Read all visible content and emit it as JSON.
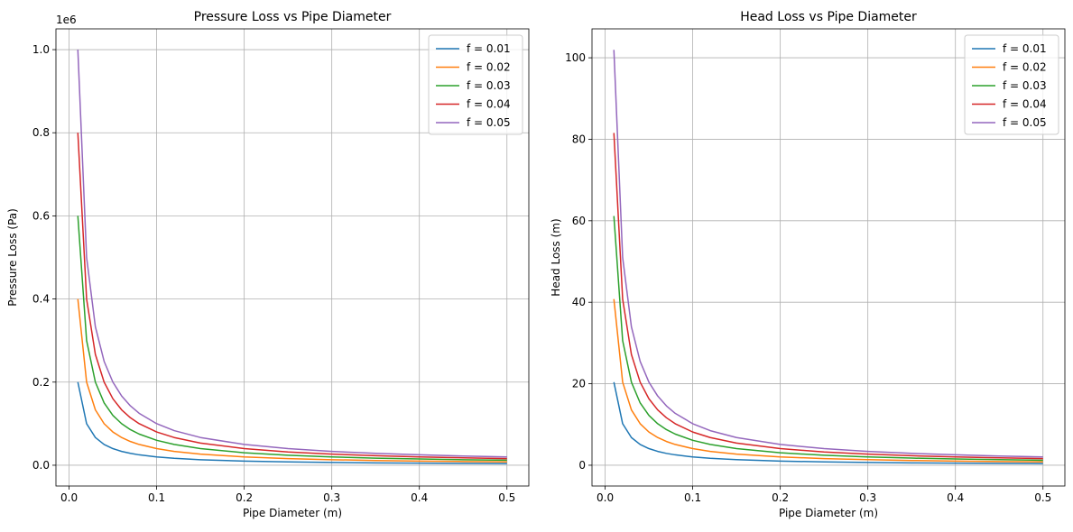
{
  "chart_data": [
    {
      "type": "line",
      "title": "Pressure Loss vs Pipe Diameter",
      "xlabel": "Pipe Diameter (m)",
      "ylabel": "Pressure Loss (Pa)",
      "y_offset_label": "1e6",
      "xlim": [
        -0.015,
        0.525
      ],
      "ylim": [
        -0.05,
        1.05
      ],
      "xticks": [
        0.0,
        0.1,
        0.2,
        0.3,
        0.4,
        0.5
      ],
      "xtick_labels": [
        "0.0",
        "0.1",
        "0.2",
        "0.3",
        "0.4",
        "0.5"
      ],
      "yticks": [
        0.0,
        0.2,
        0.4,
        0.6,
        0.8,
        1.0
      ],
      "ytick_labels": [
        "0.0",
        "0.2",
        "0.4",
        "0.6",
        "0.8",
        "1.0"
      ],
      "grid": true,
      "legend_position": "top-right",
      "x": [
        0.01,
        0.02,
        0.03,
        0.04,
        0.05,
        0.06,
        0.07,
        0.08,
        0.1,
        0.12,
        0.15,
        0.2,
        0.25,
        0.3,
        0.35,
        0.4,
        0.45,
        0.5
      ],
      "series": [
        {
          "name": "f = 0.01",
          "color": "#1f77b4",
          "values": [
            0.2,
            0.1,
            0.0667,
            0.05,
            0.04,
            0.0333,
            0.0286,
            0.025,
            0.02,
            0.0167,
            0.0133,
            0.01,
            0.008,
            0.0067,
            0.0057,
            0.005,
            0.0044,
            0.004
          ]
        },
        {
          "name": "f = 0.02",
          "color": "#ff7f0e",
          "values": [
            0.4,
            0.2,
            0.1333,
            0.1,
            0.08,
            0.0667,
            0.0571,
            0.05,
            0.04,
            0.0333,
            0.0267,
            0.02,
            0.016,
            0.0133,
            0.0114,
            0.01,
            0.0089,
            0.008
          ]
        },
        {
          "name": "f = 0.03",
          "color": "#2ca02c",
          "values": [
            0.6,
            0.3,
            0.2,
            0.15,
            0.12,
            0.1,
            0.0857,
            0.075,
            0.06,
            0.05,
            0.04,
            0.03,
            0.024,
            0.02,
            0.0171,
            0.015,
            0.0133,
            0.012
          ]
        },
        {
          "name": "f = 0.04",
          "color": "#d62728",
          "values": [
            0.8,
            0.4,
            0.2667,
            0.2,
            0.16,
            0.1333,
            0.1143,
            0.1,
            0.08,
            0.0667,
            0.0533,
            0.04,
            0.032,
            0.0267,
            0.0229,
            0.02,
            0.0178,
            0.016
          ]
        },
        {
          "name": "f = 0.05",
          "color": "#9467bd",
          "values": [
            1.0,
            0.5,
            0.3333,
            0.25,
            0.2,
            0.1667,
            0.1429,
            0.125,
            0.1,
            0.0833,
            0.0667,
            0.05,
            0.04,
            0.0333,
            0.0286,
            0.025,
            0.0222,
            0.02
          ]
        }
      ]
    },
    {
      "type": "line",
      "title": "Head Loss vs Pipe Diameter",
      "xlabel": "Pipe Diameter (m)",
      "ylabel": "Head Loss (m)",
      "y_offset_label": "",
      "xlim": [
        -0.015,
        0.525
      ],
      "ylim": [
        -5.1,
        107.1
      ],
      "xticks": [
        0.0,
        0.1,
        0.2,
        0.3,
        0.4,
        0.5
      ],
      "xtick_labels": [
        "0.0",
        "0.1",
        "0.2",
        "0.3",
        "0.4",
        "0.5"
      ],
      "yticks": [
        0,
        20,
        40,
        60,
        80,
        100
      ],
      "ytick_labels": [
        "0",
        "20",
        "40",
        "60",
        "80",
        "100"
      ],
      "grid": true,
      "legend_position": "top-right",
      "x": [
        0.01,
        0.02,
        0.03,
        0.04,
        0.05,
        0.06,
        0.07,
        0.08,
        0.1,
        0.12,
        0.15,
        0.2,
        0.25,
        0.3,
        0.35,
        0.4,
        0.45,
        0.5
      ],
      "series": [
        {
          "name": "f = 0.01",
          "color": "#1f77b4",
          "values": [
            20.39,
            10.19,
            6.8,
            5.1,
            4.08,
            3.4,
            2.91,
            2.55,
            2.04,
            1.7,
            1.36,
            1.02,
            0.82,
            0.68,
            0.58,
            0.51,
            0.45,
            0.41
          ]
        },
        {
          "name": "f = 0.02",
          "color": "#ff7f0e",
          "values": [
            40.77,
            20.39,
            13.59,
            10.19,
            8.15,
            6.8,
            5.83,
            5.1,
            4.08,
            3.4,
            2.72,
            2.04,
            1.63,
            1.36,
            1.16,
            1.02,
            0.91,
            0.82
          ]
        },
        {
          "name": "f = 0.03",
          "color": "#2ca02c",
          "values": [
            61.16,
            30.58,
            20.39,
            15.29,
            12.23,
            10.19,
            8.74,
            7.65,
            6.12,
            5.1,
            4.08,
            3.06,
            2.45,
            2.04,
            1.75,
            1.53,
            1.36,
            1.22
          ]
        },
        {
          "name": "f = 0.04",
          "color": "#d62728",
          "values": [
            81.55,
            40.77,
            27.18,
            20.39,
            16.31,
            13.59,
            11.65,
            10.19,
            8.15,
            6.8,
            5.44,
            4.08,
            3.26,
            2.72,
            2.33,
            2.04,
            1.81,
            1.63
          ]
        },
        {
          "name": "f = 0.05",
          "color": "#9467bd",
          "values": [
            101.94,
            50.97,
            33.98,
            25.48,
            20.39,
            16.99,
            14.56,
            12.74,
            10.19,
            8.49,
            6.8,
            5.1,
            4.08,
            3.4,
            2.91,
            2.55,
            2.27,
            2.04
          ]
        }
      ]
    }
  ]
}
